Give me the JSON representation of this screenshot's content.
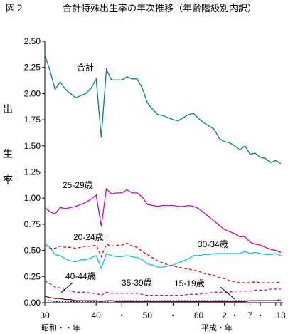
{
  "chart_data": {
    "type": "line",
    "title_left": "図２",
    "title": "合計特殊出生率の年次推移（年齢階級別内訳）",
    "ylabel": [
      "出",
      "生",
      "率"
    ],
    "ylim": [
      0,
      2.5
    ],
    "yticks": [
      "0.00",
      "0.25",
      "0.50",
      "0.75",
      "1.00",
      "1.25",
      "1.50",
      "1.75",
      "2.00",
      "2.25",
      "2.50"
    ],
    "xticks": [
      "30",
      "40",
      "・",
      "50",
      "・",
      "60",
      "2",
      "・",
      "7",
      "・",
      "13"
    ],
    "era_showa": "昭和・・年",
    "era_heisei": "平成・年",
    "x": [
      1955,
      1956,
      1957,
      1958,
      1959,
      1960,
      1961,
      1962,
      1963,
      1964,
      1965,
      1966,
      1967,
      1968,
      1969,
      1970,
      1971,
      1972,
      1973,
      1974,
      1975,
      1976,
      1977,
      1978,
      1979,
      1980,
      1981,
      1982,
      1983,
      1984,
      1985,
      1986,
      1987,
      1988,
      1989,
      1990,
      1991,
      1992,
      1993,
      1994,
      1995,
      1996,
      1997,
      1998,
      1999,
      2000,
      2001
    ],
    "series": [
      {
        "name": "合計",
        "color": "#008080",
        "style": "solid",
        "values": [
          2.37,
          2.22,
          2.04,
          2.11,
          2.04,
          2.0,
          1.96,
          1.98,
          2.0,
          2.05,
          2.14,
          1.58,
          2.23,
          2.13,
          2.13,
          2.13,
          2.16,
          2.14,
          2.14,
          2.05,
          1.91,
          1.85,
          1.8,
          1.79,
          1.77,
          1.75,
          1.74,
          1.77,
          1.8,
          1.81,
          1.76,
          1.72,
          1.69,
          1.66,
          1.57,
          1.54,
          1.53,
          1.5,
          1.46,
          1.5,
          1.42,
          1.43,
          1.39,
          1.38,
          1.34,
          1.36,
          1.33
        ]
      },
      {
        "name": "25-29歳",
        "color": "#cc00cc",
        "style": "solid",
        "values": [
          0.91,
          0.87,
          0.85,
          0.91,
          0.9,
          0.91,
          0.92,
          0.94,
          0.96,
          0.99,
          1.03,
          0.73,
          1.09,
          1.04,
          1.05,
          1.05,
          1.08,
          1.05,
          1.05,
          1.01,
          0.94,
          0.93,
          0.92,
          0.93,
          0.93,
          0.93,
          0.92,
          0.92,
          0.93,
          0.92,
          0.9,
          0.86,
          0.82,
          0.78,
          0.74,
          0.7,
          0.68,
          0.66,
          0.63,
          0.63,
          0.58,
          0.56,
          0.55,
          0.53,
          0.51,
          0.5,
          0.48
        ]
      },
      {
        "name": "30-34歳",
        "color": "#00c8e6",
        "style": "solid",
        "values": [
          0.57,
          0.53,
          0.46,
          0.45,
          0.42,
          0.4,
          0.39,
          0.41,
          0.41,
          0.43,
          0.45,
          0.33,
          0.47,
          0.45,
          0.44,
          0.44,
          0.45,
          0.44,
          0.43,
          0.41,
          0.37,
          0.36,
          0.34,
          0.34,
          0.35,
          0.36,
          0.38,
          0.4,
          0.42,
          0.45,
          0.45,
          0.46,
          0.46,
          0.47,
          0.47,
          0.47,
          0.47,
          0.47,
          0.47,
          0.49,
          0.47,
          0.48,
          0.47,
          0.46,
          0.46,
          0.47,
          0.45
        ]
      },
      {
        "name": "20-24歳",
        "color": "#ff0000",
        "style": "dashed",
        "values": [
          0.55,
          0.52,
          0.52,
          0.54,
          0.53,
          0.53,
          0.52,
          0.53,
          0.54,
          0.54,
          0.55,
          0.44,
          0.56,
          0.54,
          0.55,
          0.55,
          0.57,
          0.54,
          0.53,
          0.49,
          0.46,
          0.43,
          0.4,
          0.38,
          0.36,
          0.35,
          0.34,
          0.33,
          0.32,
          0.31,
          0.3,
          0.28,
          0.27,
          0.26,
          0.24,
          0.23,
          0.21,
          0.2,
          0.19,
          0.19,
          0.19,
          0.2,
          0.19,
          0.19,
          0.19,
          0.19,
          0.2
        ]
      },
      {
        "name": "35-39歳",
        "color": "#cc00cc",
        "style": "dashed",
        "values": [
          0.21,
          0.18,
          0.15,
          0.14,
          0.12,
          0.11,
          0.1,
          0.1,
          0.1,
          0.09,
          0.09,
          0.07,
          0.1,
          0.09,
          0.09,
          0.09,
          0.09,
          0.09,
          0.09,
          0.08,
          0.07,
          0.07,
          0.07,
          0.07,
          0.07,
          0.07,
          0.07,
          0.07,
          0.08,
          0.08,
          0.08,
          0.09,
          0.09,
          0.1,
          0.1,
          0.1,
          0.1,
          0.11,
          0.11,
          0.11,
          0.11,
          0.12,
          0.12,
          0.12,
          0.13,
          0.13,
          0.13
        ]
      },
      {
        "name": "40-44歳",
        "color": "#800000",
        "style": "solid",
        "values": [
          0.06,
          0.05,
          0.04,
          0.04,
          0.03,
          0.03,
          0.02,
          0.02,
          0.02,
          0.02,
          0.02,
          0.01,
          0.02,
          0.02,
          0.01,
          0.01,
          0.01,
          0.01,
          0.01,
          0.01,
          0.01,
          0.01,
          0.01,
          0.01,
          0.01,
          0.01,
          0.01,
          0.01,
          0.01,
          0.01,
          0.01,
          0.01,
          0.01,
          0.01,
          0.01,
          0.01,
          0.01,
          0.01,
          0.01,
          0.01,
          0.02,
          0.02,
          0.02,
          0.02,
          0.02,
          0.02,
          0.02
        ]
      },
      {
        "name": "15-19歳",
        "color": "#0000cc",
        "style": "dotted",
        "values": [
          0.02,
          0.02,
          0.01,
          0.01,
          0.01,
          0.01,
          0.01,
          0.01,
          0.01,
          0.01,
          0.01,
          0.01,
          0.01,
          0.02,
          0.02,
          0.02,
          0.02,
          0.02,
          0.02,
          0.02,
          0.02,
          0.02,
          0.02,
          0.02,
          0.02,
          0.02,
          0.02,
          0.02,
          0.02,
          0.02,
          0.02,
          0.02,
          0.02,
          0.02,
          0.02,
          0.02,
          0.02,
          0.02,
          0.02,
          0.02,
          0.02,
          0.02,
          0.02,
          0.02,
          0.02,
          0.02,
          0.03
        ]
      }
    ]
  }
}
